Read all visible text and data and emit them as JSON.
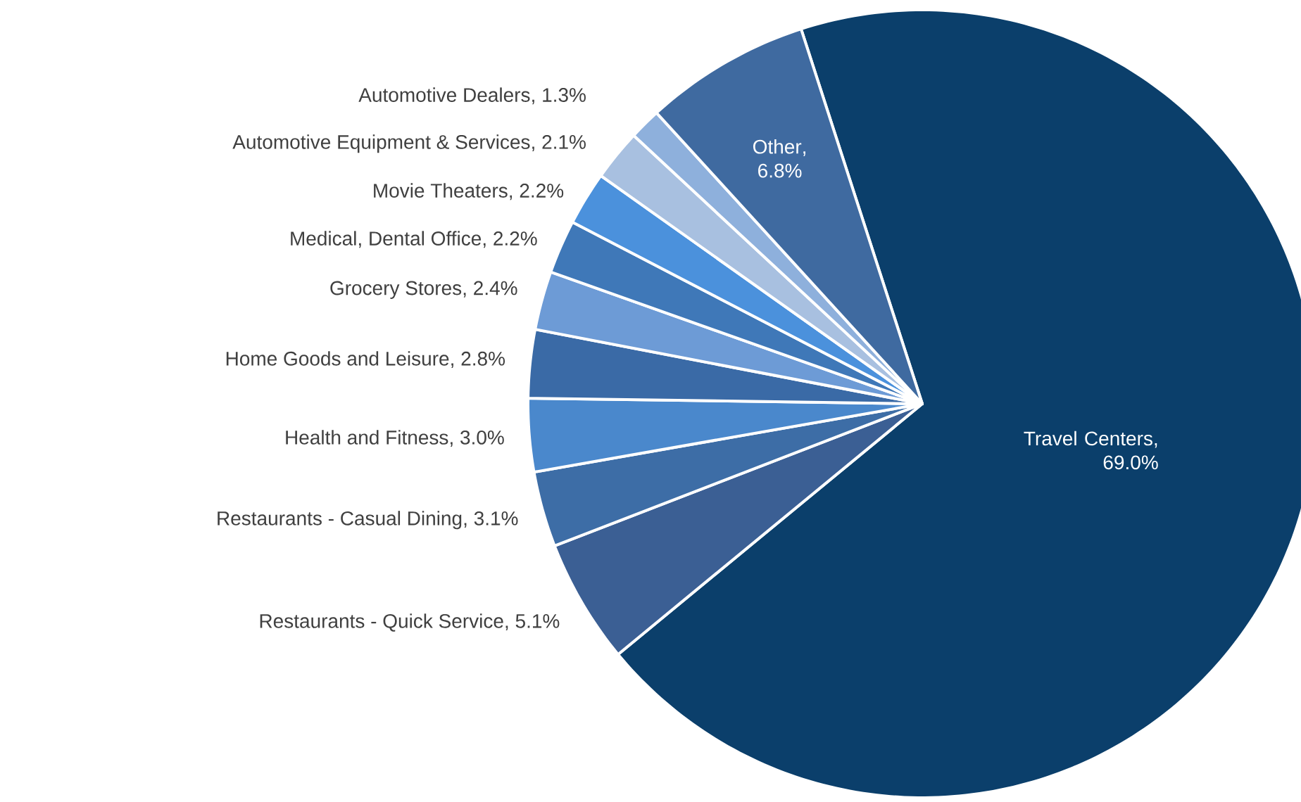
{
  "chart_data": {
    "type": "pie",
    "categories": [
      "Travel Centers",
      "Restaurants - Quick Service",
      "Restaurants - Casual Dining",
      "Health and Fitness",
      "Home Goods and Leisure",
      "Grocery Stores",
      "Medical, Dental Office",
      "Movie Theaters",
      "Automotive Equipment & Services",
      "Automotive Dealers",
      "Other"
    ],
    "values": [
      69.0,
      5.1,
      3.1,
      3.0,
      2.8,
      2.4,
      2.2,
      2.2,
      2.1,
      1.3,
      6.8
    ],
    "value_labels": [
      ", 69.0%",
      ", 5.1%",
      ", 3.1%",
      ", 3.0%",
      ", 2.8%",
      ", 2.4%",
      ", 2.2%",
      ", 2.2%",
      ", 2.1%",
      ", 1.3%",
      ", 6.8%"
    ],
    "colors": [
      "#0b3f6b",
      "#3b5f94",
      "#3d6da6",
      "#4a88cc",
      "#3a6aa6",
      "#6d9bd6",
      "#3f78b8",
      "#4b91dc",
      "#a8c0e0",
      "#8eb0dc",
      "#3f6aa0"
    ]
  }
}
